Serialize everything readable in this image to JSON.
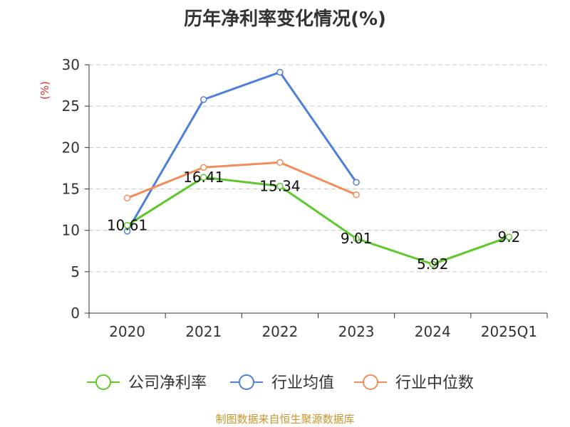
{
  "chart_data": {
    "type": "line",
    "title": "历年净利率变化情况(%)",
    "ylabel": "(%)",
    "categories": [
      "2020",
      "2021",
      "2022",
      "2023",
      "2024",
      "2025Q1"
    ],
    "ylim": [
      0,
      30
    ],
    "yticks": [
      0,
      5,
      10,
      15,
      20,
      25,
      30
    ],
    "grid": true,
    "legend_position": "bottom",
    "series": [
      {
        "name": "公司净利率",
        "color": "#5cc82a",
        "values": [
          10.61,
          16.41,
          15.34,
          9.01,
          5.92,
          9.2
        ],
        "labels": [
          "10.61",
          "16.41",
          "15.34",
          "9.01",
          "5.92",
          "9.2"
        ]
      },
      {
        "name": "行业均值",
        "color": "#4e7fdb",
        "values": [
          9.9,
          25.8,
          29.1,
          15.8,
          null,
          null
        ]
      },
      {
        "name": "行业中位数",
        "color": "#f28d5a",
        "values": [
          13.9,
          17.6,
          18.2,
          14.3,
          null,
          null
        ]
      }
    ]
  },
  "source": "制图数据来自恒生聚源数据库"
}
